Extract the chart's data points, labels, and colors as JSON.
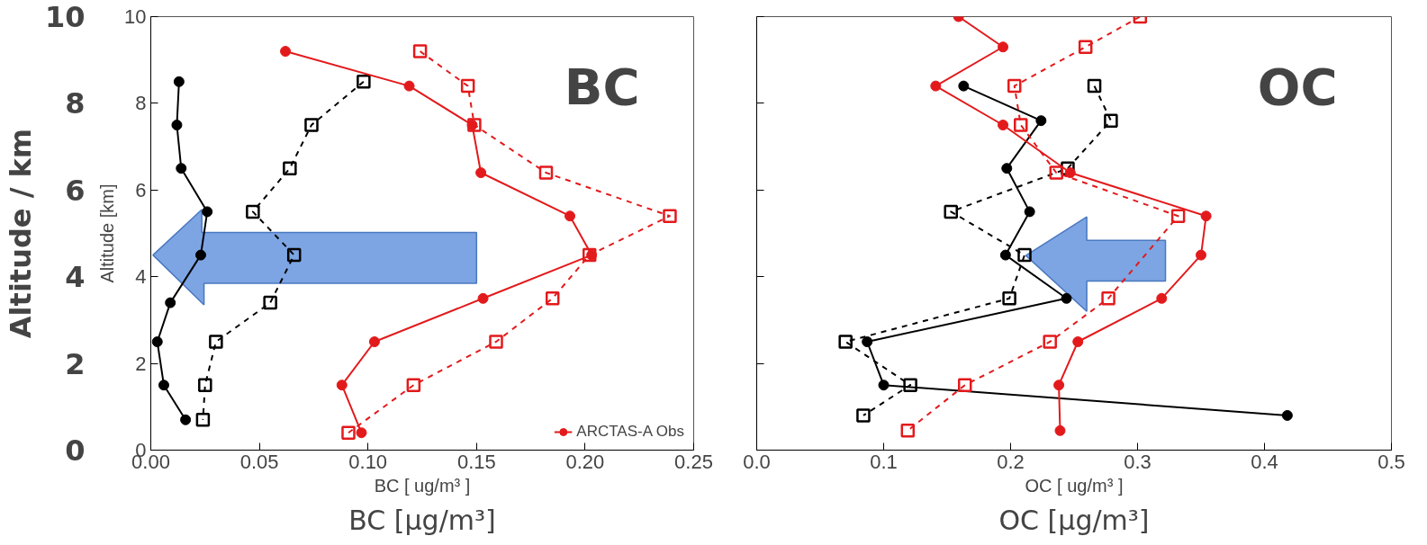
{
  "chart_data": [
    {
      "type": "line",
      "title": "BC",
      "xlabel": "BC [ ug/m³ ]",
      "ylabel": "Altitude [km]",
      "y2label": "Altitude / km",
      "annotations": [
        "BC [µg/m³]"
      ],
      "xlim": [
        0,
        0.25
      ],
      "xticks": [
        {
          "value": 0,
          "label": "0.00"
        },
        {
          "value": 0.05,
          "label": "0.05"
        },
        {
          "value": 0.1,
          "label": "0.10"
        },
        {
          "value": 0.15,
          "label": "0.15"
        },
        {
          "value": 0.2,
          "label": "0.20"
        },
        {
          "value": 0.25,
          "label": "0.25"
        }
      ],
      "ylim": [
        0,
        10
      ],
      "yticks": [
        0,
        2,
        4,
        6,
        8,
        10
      ],
      "y2lim": [
        0,
        10
      ],
      "y2ticks": [
        0,
        2,
        4,
        6,
        8,
        10
      ],
      "legend": "bottom right",
      "series": [
        {
          "color": "#000000",
          "marker": "circle",
          "line_style": "solid",
          "x": [
            0.013,
            0.012,
            0.014,
            0.026,
            0.023,
            0.009,
            0.003,
            0.006,
            0.016
          ],
          "values": [
            8.5,
            7.5,
            6.5,
            5.5,
            4.5,
            3.4,
            2.5,
            1.5,
            0.7
          ]
        },
        {
          "color": "#000000",
          "marker": "square",
          "line_style": "dashed",
          "x": [
            0.098,
            0.074,
            0.064,
            0.047,
            0.066,
            0.055,
            0.03,
            0.025,
            0.024
          ],
          "values": [
            8.5,
            7.5,
            6.5,
            5.5,
            4.5,
            3.4,
            2.5,
            1.5,
            0.7
          ]
        },
        {
          "name": "ARCTAS-A Obs",
          "color": "#e31a1c",
          "marker": "circle",
          "line_style": "solid",
          "x": [
            0.062,
            0.119,
            0.148,
            0.152,
            0.193,
            0.203,
            0.153,
            0.103,
            0.088,
            0.097
          ],
          "values": [
            9.2,
            8.4,
            7.5,
            6.4,
            5.4,
            4.5,
            3.5,
            2.5,
            1.5,
            0.4
          ]
        },
        {
          "color": "#e31a1c",
          "marker": "square",
          "line_style": "dashed",
          "x": [
            0.124,
            0.146,
            0.149,
            0.182,
            0.239,
            0.202,
            0.185,
            0.159,
            0.121,
            0.091
          ],
          "values": [
            9.2,
            8.4,
            7.5,
            6.4,
            5.4,
            4.5,
            3.5,
            2.5,
            1.5,
            0.4
          ]
        }
      ]
    },
    {
      "type": "line",
      "title": "OC",
      "xlabel": "OC [ ug/m³ ]",
      "annotations": [
        "OC [µg/m³]"
      ],
      "tick_labels": "x",
      "xlim": [
        0,
        0.5
      ],
      "xticks": [
        {
          "value": 0,
          "label": "0.0"
        },
        {
          "value": 0.1,
          "label": "0.1"
        },
        {
          "value": 0.2,
          "label": "0.2"
        },
        {
          "value": 0.3,
          "label": "0.3"
        },
        {
          "value": 0.4,
          "label": "0.4"
        },
        {
          "value": 0.5,
          "label": "0.5"
        }
      ],
      "ylim": [
        0,
        10
      ],
      "yticks": [
        0,
        2,
        4,
        6,
        8,
        10
      ],
      "series": [
        {
          "color": "#000000",
          "marker": "circle",
          "line_style": "solid",
          "x": [
            0.163,
            0.224,
            0.197,
            0.215,
            0.196,
            0.244,
            0.087,
            0.1,
            0.418
          ],
          "values": [
            8.4,
            7.6,
            6.5,
            5.5,
            4.5,
            3.5,
            2.5,
            1.5,
            0.8
          ]
        },
        {
          "color": "#000000",
          "marker": "square",
          "line_style": "dashed",
          "x": [
            0.266,
            0.279,
            0.245,
            0.153,
            0.211,
            0.199,
            0.07,
            0.121,
            0.084
          ],
          "values": [
            8.4,
            7.6,
            6.5,
            5.5,
            4.5,
            3.5,
            2.5,
            1.5,
            0.8
          ]
        },
        {
          "color": "#e31a1c",
          "marker": "circle",
          "line_style": "solid",
          "x": [
            0.159,
            0.194,
            0.141,
            0.194,
            0.247,
            0.354,
            0.35,
            0.319,
            0.253,
            0.238,
            0.239
          ],
          "values": [
            10.0,
            9.3,
            8.4,
            7.5,
            6.4,
            5.4,
            4.5,
            3.5,
            2.5,
            1.5,
            0.45
          ]
        },
        {
          "color": "#e31a1c",
          "marker": "square",
          "line_style": "dashed",
          "x": [
            0.302,
            0.259,
            0.203,
            0.208,
            0.236,
            0.332,
            0.277,
            0.231,
            0.164,
            0.119
          ],
          "values": [
            10.0,
            9.3,
            8.4,
            7.5,
            6.4,
            5.4,
            3.5,
            2.5,
            1.5,
            0.45
          ]
        }
      ]
    }
  ]
}
